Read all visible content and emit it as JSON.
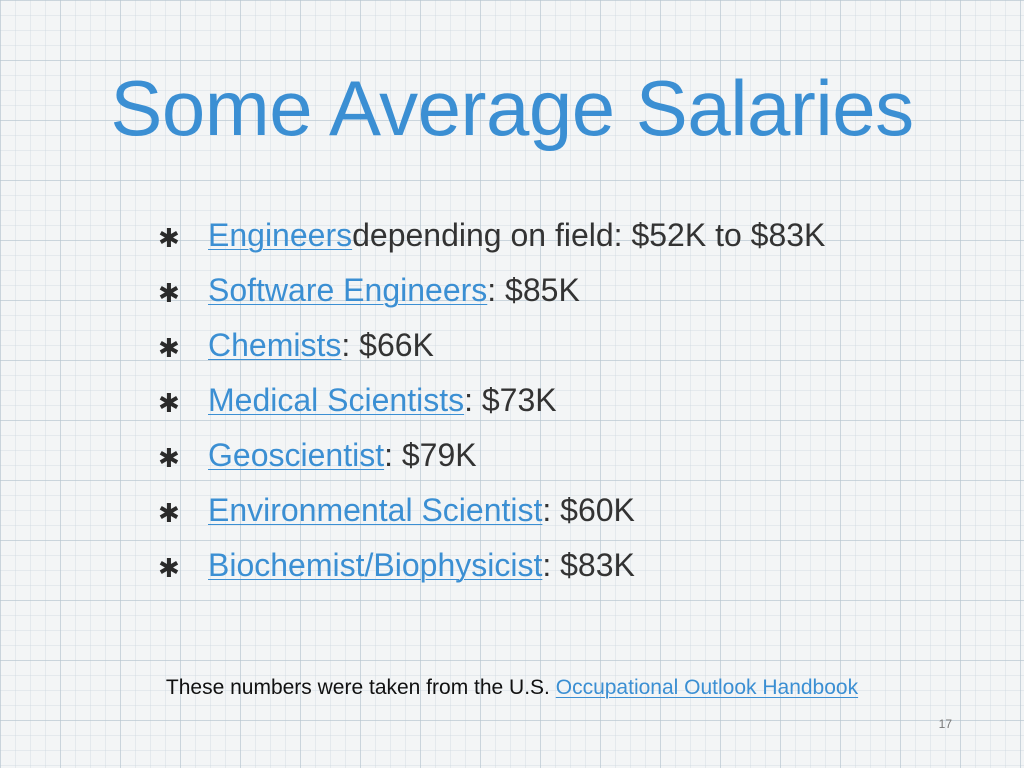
{
  "slide": {
    "title": "Some Average Salaries",
    "bullet_icon": "asterisk-icon",
    "accent_color": "#3b8fd3",
    "bullets": [
      {
        "link": "Engineers",
        "text": " depending on field: $52K to $83K"
      },
      {
        "link": "Software Engineers",
        "text": ": $85K"
      },
      {
        "link": "Chemists",
        "text": ": $66K"
      },
      {
        "link": "Medical Scientists",
        "text": ": $73K"
      },
      {
        "link": "Geoscientist",
        "text": ": $79K"
      },
      {
        "link": "Environmental Scientist",
        "text": ": $60K"
      },
      {
        "link": "Biochemist/Biophysicist",
        "text": ": $83K"
      }
    ],
    "footnote": {
      "text": "These numbers were taken from the U.S. ",
      "link": "Occupational Outlook Handbook"
    },
    "page_number": "17"
  }
}
